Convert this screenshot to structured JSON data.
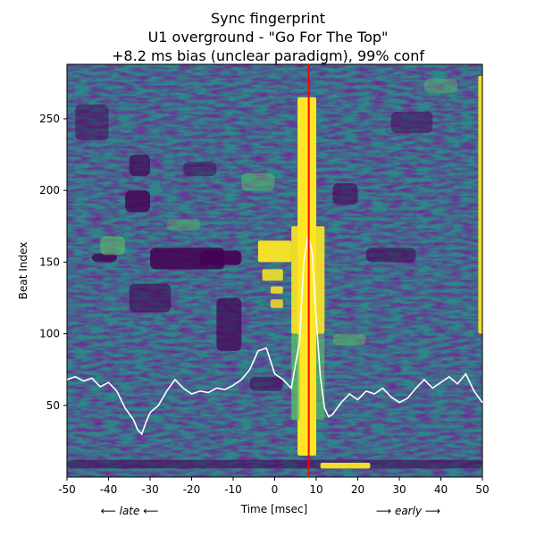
{
  "chart_data": {
    "type": "heatmap",
    "title_lines": [
      "Sync fingerprint",
      "U1 overground - \"Go For The Top\"",
      "+8.2 ms bias (unclear paradigm), 99% conf"
    ],
    "xlabel": "Time [msec]",
    "ylabel": "Beat Index",
    "x_direction_labels": {
      "left": "⟵ late ⟵",
      "right": "⟶ early ⟶"
    },
    "xlim": [
      -50,
      50
    ],
    "ylim": [
      0,
      288
    ],
    "x_ticks": [
      -50,
      -40,
      -30,
      -20,
      -10,
      0,
      10,
      20,
      30,
      40,
      50
    ],
    "y_ticks": [
      50,
      100,
      150,
      200,
      250
    ],
    "colormap": "viridis",
    "colors": {
      "viridis_low": "#440154",
      "viridis_mid": "#21918c",
      "viridis_high": "#fde725",
      "bias_line": "#ff0000",
      "histogram": "#ffffff"
    },
    "bias_ms": 8.2,
    "confidence": "99%",
    "overlay_histogram": {
      "description": "white curve = aggregate timing distribution (beat-index units)",
      "x": [
        -50,
        -48,
        -46,
        -44,
        -42,
        -40,
        -38,
        -36,
        -34,
        -33,
        -32,
        -31,
        -30,
        -28,
        -26,
        -24,
        -22,
        -20,
        -18,
        -16,
        -14,
        -12,
        -10,
        -8,
        -6,
        -4,
        -2,
        0,
        2,
        4,
        6,
        7,
        8,
        9,
        10,
        11,
        12,
        13,
        14,
        16,
        18,
        20,
        22,
        24,
        26,
        28,
        30,
        32,
        34,
        36,
        38,
        40,
        42,
        44,
        46,
        48,
        50
      ],
      "y": [
        68,
        70,
        67,
        69,
        63,
        66,
        60,
        48,
        40,
        33,
        30,
        38,
        45,
        50,
        60,
        68,
        62,
        58,
        60,
        59,
        62,
        61,
        64,
        68,
        75,
        88,
        90,
        72,
        68,
        62,
        95,
        150,
        168,
        158,
        110,
        70,
        48,
        42,
        44,
        52,
        58,
        54,
        60,
        58,
        62,
        56,
        52,
        55,
        62,
        68,
        62,
        66,
        70,
        65,
        72,
        60,
        52
      ]
    }
  }
}
